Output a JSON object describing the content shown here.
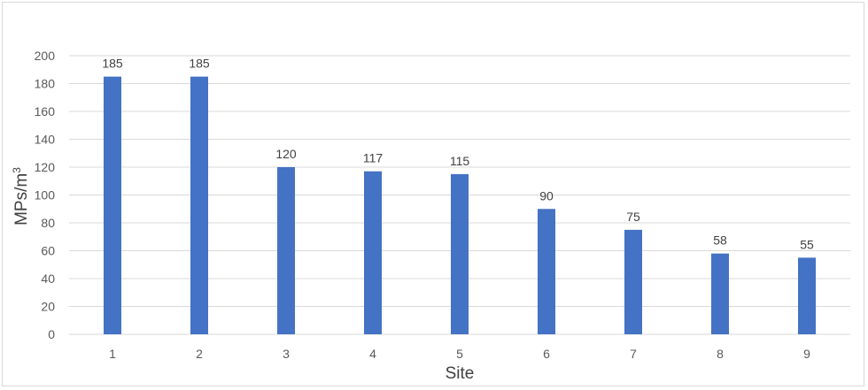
{
  "chart_data": {
    "type": "bar",
    "categories": [
      "1",
      "2",
      "3",
      "4",
      "5",
      "6",
      "7",
      "8",
      "9"
    ],
    "values": [
      185,
      185,
      120,
      117,
      115,
      90,
      75,
      58,
      55
    ],
    "data_labels": [
      "185",
      "185",
      "120",
      "117",
      "115",
      "90",
      "75",
      "58",
      "55"
    ],
    "yticks": [
      "0",
      "20",
      "40",
      "60",
      "80",
      "100",
      "120",
      "140",
      "160",
      "180",
      "200"
    ],
    "xlabel": "Site",
    "ylabel": "MPs/m",
    "ylabel_superscript": "3",
    "ylim": [
      0,
      200
    ],
    "grid": true,
    "bar_color": "#4472c4",
    "grid_color": "#d9d9d9"
  }
}
